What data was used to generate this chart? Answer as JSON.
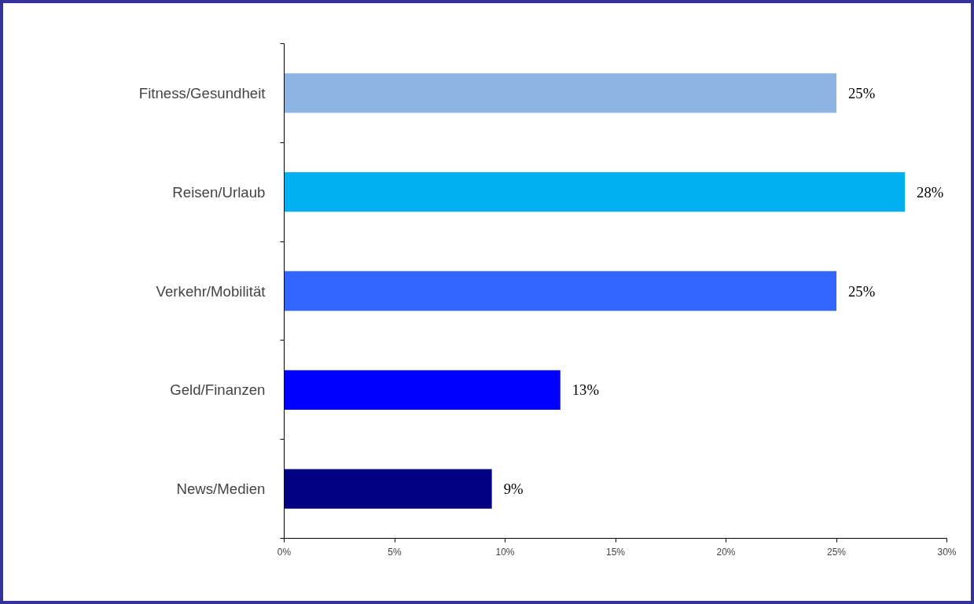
{
  "chart_data": {
    "type": "bar",
    "orientation": "horizontal",
    "categories": [
      "Fitness/Gesundheit",
      "Reisen/Urlaub",
      "Verkehr/Mobilität",
      "Geld/Finanzen",
      "News/Medien"
    ],
    "values": [
      25,
      28.1,
      25,
      12.5,
      9.4
    ],
    "colors": [
      "#8eb4e3",
      "#00b0f0",
      "#3366ff",
      "#0000ff",
      "#000080"
    ],
    "value_labels": [
      "25%",
      "28%",
      "25%",
      "13%",
      "9%"
    ],
    "xlim": [
      0,
      30
    ],
    "xticks": [
      {
        "value": 0,
        "label": "0%"
      },
      {
        "value": 5,
        "label": "5%"
      },
      {
        "value": 10,
        "label": "10%"
      },
      {
        "value": 15,
        "label": "15%"
      },
      {
        "value": 20,
        "label": "20%"
      },
      {
        "value": 25,
        "label": "25%"
      },
      {
        "value": 30,
        "label": "30%"
      }
    ]
  }
}
